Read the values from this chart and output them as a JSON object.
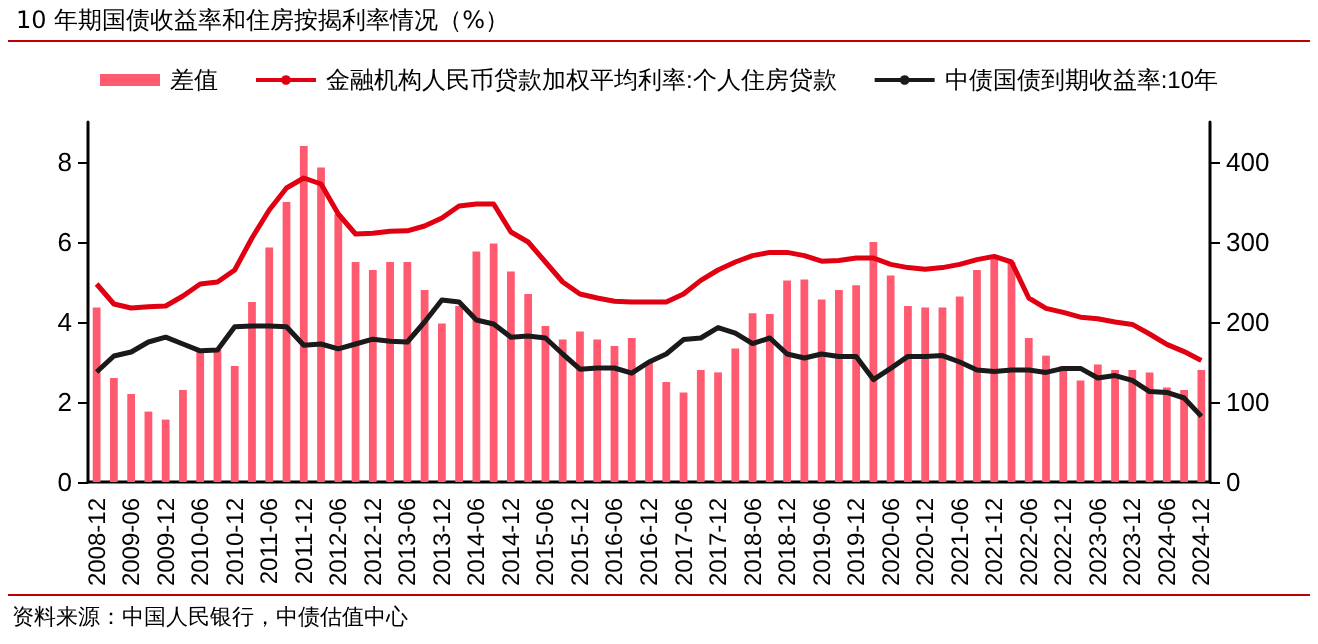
{
  "chart_data": {
    "type": "bar",
    "title": "10 年期国债收益率和住房按揭利率情况（%）",
    "categories": [
      "2008-12",
      null,
      "2009-06",
      null,
      "2009-12",
      null,
      "2010-06",
      null,
      "2010-12",
      null,
      "2011-06",
      null,
      "2011-12",
      null,
      "2012-06",
      null,
      "2012-12",
      null,
      "2013-06",
      null,
      "2013-12",
      null,
      "2014-06",
      null,
      "2014-12",
      null,
      "2015-06",
      null,
      "2015-12",
      null,
      "2016-06",
      null,
      "2016-12",
      null,
      "2017-06",
      null,
      "2017-12",
      null,
      "2018-06",
      null,
      "2018-12",
      null,
      "2019-06",
      null,
      "2019-12",
      null,
      "2020-06",
      null,
      "2020-12",
      null,
      "2021-06",
      null,
      "2021-12",
      null,
      "2022-06",
      null,
      "2022-12",
      null,
      "2023-06",
      null,
      "2023-12",
      null,
      "2024-06",
      null,
      "2024-12"
    ],
    "series": [
      {
        "name": "差值",
        "axis": "y2",
        "color": "#ff5a70",
        "values": [
          218,
          130,
          110,
          88,
          78,
          115,
          165,
          165,
          145,
          225,
          293,
          350,
          420,
          393,
          335,
          275,
          265,
          275,
          275,
          240,
          198,
          220,
          288,
          298,
          263,
          235,
          195,
          178,
          188,
          178,
          170,
          180,
          150,
          125,
          112,
          140,
          137,
          167,
          211,
          210,
          252,
          253,
          228,
          240,
          246,
          300,
          258,
          220,
          218,
          218,
          232,
          265,
          280,
          275,
          180,
          158,
          145,
          127,
          147,
          140,
          140,
          137,
          118,
          115,
          140
        ]
      },
      {
        "name": "金融机构人民币贷款加权平均利率:个人住房贷款",
        "type": "line",
        "color": "#e00012",
        "values": [
          4.95,
          4.45,
          4.35,
          4.38,
          4.4,
          4.65,
          4.95,
          5.0,
          5.3,
          6.1,
          6.8,
          7.35,
          7.6,
          7.45,
          6.7,
          6.2,
          6.22,
          6.27,
          6.28,
          6.4,
          6.6,
          6.9,
          6.95,
          6.95,
          6.25,
          6.0,
          5.5,
          5.0,
          4.7,
          4.6,
          4.52,
          4.5,
          4.5,
          4.5,
          4.7,
          5.04,
          5.3,
          5.5,
          5.66,
          5.74,
          5.74,
          5.66,
          5.52,
          5.54,
          5.6,
          5.6,
          5.44,
          5.36,
          5.32,
          5.36,
          5.44,
          5.56,
          5.64,
          5.5,
          4.6,
          4.34,
          4.24,
          4.12,
          4.08,
          4.0,
          3.94,
          3.7,
          3.44,
          3.26,
          3.04
        ]
      },
      {
        "name": "中债国债到期收益率:10年",
        "type": "line",
        "color": "#1a1a1a",
        "values": [
          2.75,
          3.15,
          3.25,
          3.5,
          3.62,
          3.45,
          3.28,
          3.3,
          3.88,
          3.9,
          3.9,
          3.88,
          3.42,
          3.45,
          3.33,
          3.45,
          3.57,
          3.52,
          3.5,
          4.0,
          4.55,
          4.5,
          4.05,
          3.95,
          3.62,
          3.65,
          3.6,
          3.2,
          2.82,
          2.85,
          2.85,
          2.72,
          3.0,
          3.2,
          3.56,
          3.6,
          3.86,
          3.72,
          3.46,
          3.6,
          3.2,
          3.1,
          3.2,
          3.14,
          3.14,
          2.56,
          2.84,
          3.14,
          3.14,
          3.16,
          3.0,
          2.8,
          2.76,
          2.8,
          2.8,
          2.74,
          2.84,
          2.84,
          2.6,
          2.66,
          2.54,
          2.26,
          2.24,
          2.1,
          1.64
        ]
      }
    ],
    "ylim": [
      0,
      9
    ],
    "yticks": [
      0,
      2,
      4,
      6,
      8
    ],
    "y2lim": [
      0,
      450
    ],
    "y2ticks": [
      0,
      100,
      200,
      300,
      400
    ],
    "grid": false,
    "legend": "top",
    "marker": "none",
    "line_style": "solid",
    "annotations": [
      "资料来源：中国人民银行，中债估值中心"
    ]
  }
}
